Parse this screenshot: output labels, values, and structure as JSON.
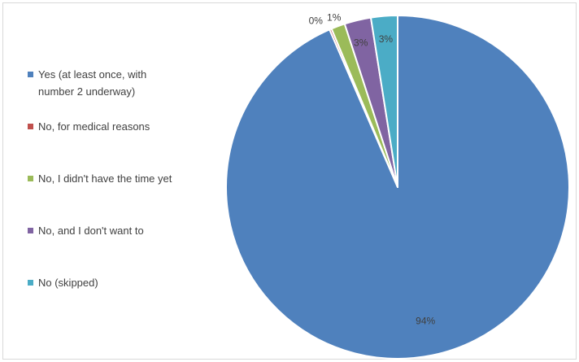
{
  "chart_data": {
    "type": "pie",
    "title": "",
    "legend_position": "left",
    "start_angle_deg": 0,
    "direction": "clockwise",
    "slices": [
      {
        "label": "Yes (at least once, with number 2 underway)",
        "label_lines": [
          "Yes (at least once, with",
          "number 2 underway)"
        ],
        "value": 93.5,
        "display": "94%",
        "color": "#4f81bd"
      },
      {
        "label": "No, for medical reasons",
        "label_lines": [
          "No, for medical reasons"
        ],
        "value": 0.2,
        "display": "0%",
        "color": "#c0504d"
      },
      {
        "label": "No, I didn't have the time yet",
        "label_lines": [
          "No, I didn't have the time yet"
        ],
        "value": 1.3,
        "display": "1%",
        "color": "#9bbb59"
      },
      {
        "label": "No, and I don't want to",
        "label_lines": [
          "No, and I don't want to"
        ],
        "value": 2.5,
        "display": "3%",
        "color": "#8064a2"
      },
      {
        "label": "No (skipped)",
        "label_lines": [
          "No (skipped)"
        ],
        "value": 2.5,
        "display": "3%",
        "color": "#4bacc6"
      }
    ]
  }
}
